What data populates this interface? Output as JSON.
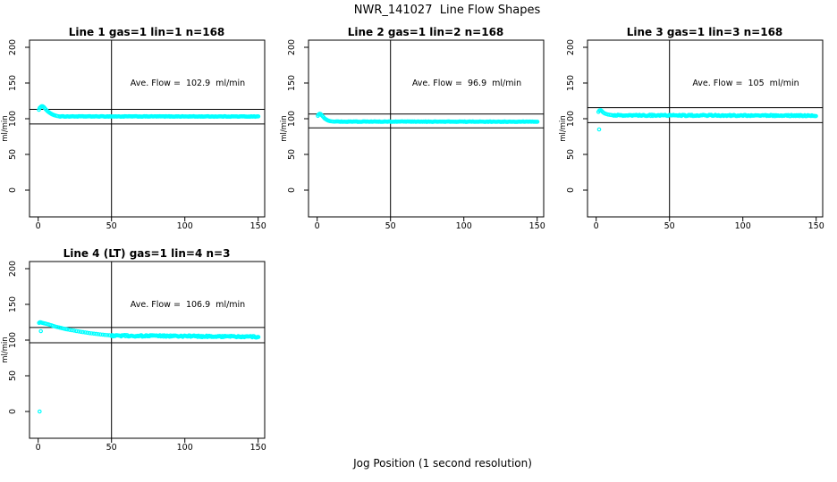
{
  "figure": {
    "title": "NWR_141027  Line Flow Shapes",
    "xlabel": "Jog Position (1 second resolution)",
    "background": "#ffffff",
    "point_color": "#00ffff",
    "axis_color": "#000000"
  },
  "chart_data": [
    {
      "type": "scatter",
      "title": "Line 1 gas=1 lin=1 n=168",
      "annotation": "Ave. Flow =  102.9  ml/min",
      "ave_flow_ml_min": 102.9,
      "n_points": 168,
      "ylabel": "ml/min",
      "xticks": [
        0,
        50,
        100,
        150
      ],
      "yticks": [
        0,
        50,
        100,
        150,
        200
      ],
      "xlim": [
        -6,
        155
      ],
      "ylim": [
        -35,
        210
      ],
      "vline_x": 50,
      "hlines": [
        113.2,
        92.6
      ],
      "points": {
        "transient": [
          [
            0.5,
            112.5
          ],
          [
            1,
            115
          ],
          [
            1.7,
            116.5
          ],
          [
            2.4,
            117.5
          ],
          [
            3,
            117.5
          ],
          [
            3.7,
            116.5
          ],
          [
            4.4,
            115
          ],
          [
            5,
            113.5
          ],
          [
            5.7,
            112
          ],
          [
            6.4,
            110.5
          ],
          [
            7,
            109.5
          ],
          [
            7.7,
            108.5
          ],
          [
            8.4,
            107.5
          ],
          [
            9,
            106.8
          ],
          [
            9.7,
            106
          ],
          [
            10.4,
            105.4
          ],
          [
            11,
            104.9
          ],
          [
            12,
            104.2
          ],
          [
            13,
            103.7
          ],
          [
            14,
            103.4
          ]
        ],
        "flat": {
          "x_from": 15,
          "x_to": 150.5,
          "step": 0.7,
          "y_start": 103.2,
          "y_end": 103.1,
          "jitter": 0.35
        },
        "outliers": []
      }
    },
    {
      "type": "scatter",
      "title": "Line 2 gas=1 lin=2 n=168",
      "annotation": "Ave. Flow =  96.9  ml/min",
      "ave_flow_ml_min": 96.9,
      "n_points": 168,
      "ylabel": "ml/min",
      "xticks": [
        0,
        50,
        100,
        150
      ],
      "yticks": [
        0,
        50,
        100,
        150,
        200
      ],
      "xlim": [
        -6,
        155
      ],
      "ylim": [
        -35,
        210
      ],
      "vline_x": 50,
      "hlines": [
        106.6,
        87.2
      ],
      "points": {
        "transient": [
          [
            0.5,
            104
          ],
          [
            1,
            106
          ],
          [
            1.7,
            107
          ],
          [
            2.4,
            106.5
          ],
          [
            3,
            105
          ],
          [
            3.7,
            103.5
          ],
          [
            4.4,
            102
          ],
          [
            5,
            100.5
          ],
          [
            5.7,
            99.5
          ],
          [
            6.4,
            98.6
          ],
          [
            7,
            97.9
          ],
          [
            7.7,
            97.3
          ],
          [
            8.4,
            96.8
          ],
          [
            9,
            96.5
          ],
          [
            10,
            96.2
          ],
          [
            11,
            96
          ],
          [
            12,
            95.9
          ]
        ],
        "flat": {
          "x_from": 13,
          "x_to": 150.5,
          "step": 0.7,
          "y_start": 95.9,
          "y_end": 95.8,
          "jitter": 0.35
        },
        "outliers": []
      }
    },
    {
      "type": "scatter",
      "title": "Line 3 gas=1 lin=3 n=168",
      "annotation": "Ave. Flow =  105  ml/min",
      "ave_flow_ml_min": 105,
      "n_points": 168,
      "ylabel": "ml/min",
      "xticks": [
        0,
        50,
        100,
        150
      ],
      "yticks": [
        0,
        50,
        100,
        150,
        200
      ],
      "xlim": [
        -6,
        155
      ],
      "ylim": [
        -35,
        210
      ],
      "vline_x": 50,
      "hlines": [
        115.5,
        94.5
      ],
      "points": {
        "transient": [
          [
            1.5,
            109.5
          ],
          [
            2.2,
            111.5
          ],
          [
            3,
            112
          ],
          [
            3.7,
            111
          ],
          [
            4.4,
            109.5
          ],
          [
            5.1,
            108.3
          ],
          [
            6,
            107.3
          ],
          [
            7,
            106.5
          ],
          [
            8,
            105.9
          ],
          [
            9,
            105.5
          ],
          [
            10,
            105.2
          ],
          [
            11,
            105
          ]
        ],
        "flat": {
          "x_from": 12,
          "x_to": 150.5,
          "step": 0.7,
          "y_start": 104.8,
          "y_end": 104.3,
          "jitter": 0.85
        },
        "outliers": [
          [
            2,
            85
          ]
        ]
      }
    },
    {
      "type": "scatter",
      "title": "Line 4 (LT) gas=1 lin=4 n=3",
      "annotation": "Ave. Flow =  106.9  ml/min",
      "ave_flow_ml_min": 106.9,
      "n_points": 3,
      "ylabel": "ml/min",
      "xticks": [
        0,
        50,
        100,
        150
      ],
      "yticks": [
        0,
        50,
        100,
        150,
        200
      ],
      "xlim": [
        -6,
        155
      ],
      "ylim": [
        -35,
        210
      ],
      "vline_x": 50,
      "hlines": [
        117.6,
        96.2
      ],
      "points": {
        "transient": [
          [
            0.6,
            124
          ],
          [
            1.2,
            125
          ],
          [
            1.8,
            124.8
          ],
          [
            2.4,
            124.4
          ],
          [
            3,
            124
          ],
          [
            4,
            123.5
          ],
          [
            5,
            123
          ],
          [
            6,
            122.5
          ],
          [
            7,
            122
          ],
          [
            8,
            121.3
          ],
          [
            9,
            120.7
          ],
          [
            10,
            120
          ],
          [
            11,
            119.4
          ],
          [
            12,
            118.8
          ],
          [
            13,
            118.3
          ],
          [
            14,
            117.7
          ],
          [
            15,
            117.2
          ],
          [
            16,
            116.7
          ],
          [
            17,
            116.2
          ],
          [
            18,
            115.7
          ],
          [
            19,
            115.3
          ],
          [
            20,
            114.9
          ],
          [
            21.5,
            114.3
          ],
          [
            23,
            113.7
          ],
          [
            24.5,
            113.2
          ],
          [
            26,
            112.6
          ],
          [
            27.5,
            112.1
          ],
          [
            29,
            111.6
          ],
          [
            30.5,
            111.1
          ],
          [
            32,
            110.7
          ],
          [
            33.5,
            110.2
          ],
          [
            35,
            109.8
          ],
          [
            36.5,
            109.4
          ],
          [
            38,
            109
          ],
          [
            39.5,
            108.6
          ],
          [
            41,
            108.3
          ],
          [
            42.5,
            107.9
          ],
          [
            44,
            107.6
          ],
          [
            45.5,
            107.3
          ],
          [
            47,
            107
          ],
          [
            48.5,
            106.8
          ],
          [
            50,
            106.6
          ]
        ],
        "flat": {
          "x_from": 50,
          "x_to": 150.5,
          "step": 0.6,
          "y_start": 106.3,
          "y_end": 104.6,
          "jitter": 1.1
        },
        "outliers": [
          [
            1,
            0
          ],
          [
            1.8,
            112.5
          ]
        ]
      }
    }
  ]
}
